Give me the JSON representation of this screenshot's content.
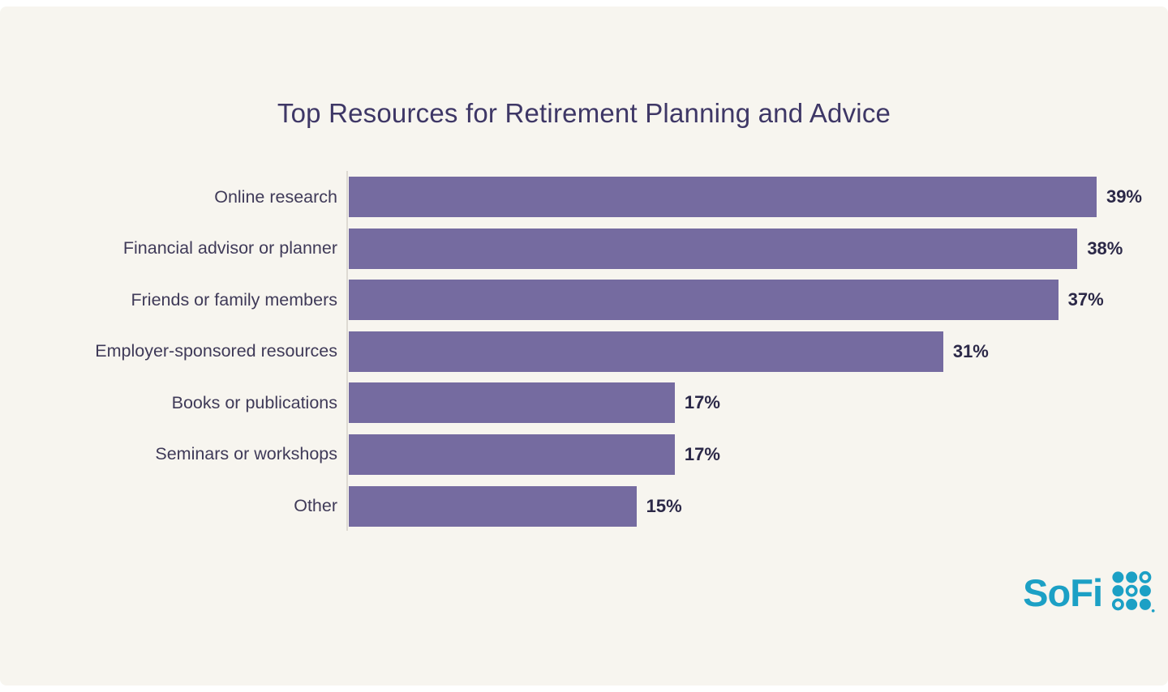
{
  "title": "Top Resources for Retirement Planning and Advice",
  "chart_data": {
    "type": "bar",
    "orientation": "horizontal",
    "title": "Top Resources for Retirement Planning and Advice",
    "categories": [
      "Online research",
      "Financial advisor or planner",
      "Friends or family members",
      "Employer-sponsored resources",
      "Books or publications",
      "Seminars or workshops",
      "Other"
    ],
    "values": [
      39,
      38,
      37,
      31,
      17,
      17,
      15
    ],
    "value_suffix": "%",
    "xlabel": "",
    "ylabel": "",
    "xlim": [
      0,
      42
    ],
    "grid": false,
    "legend": false,
    "bar_color": "#756BA0",
    "data_labels": [
      "39%",
      "38%",
      "37%",
      "31%",
      "17%",
      "17%",
      "15%"
    ]
  },
  "branding": {
    "logo_text": "SoFi",
    "logo_color": "#1CA0C5",
    "logo_icon": "sofi-dots-grid"
  },
  "colors": {
    "background": "#F7F5EF",
    "page_edge": "#FFFFFF",
    "bar": "#756BA0",
    "title_text": "#3E3766",
    "category_text": "#3F3A58",
    "value_text": "#2B2847",
    "axis_line": "#DEDAD3"
  }
}
